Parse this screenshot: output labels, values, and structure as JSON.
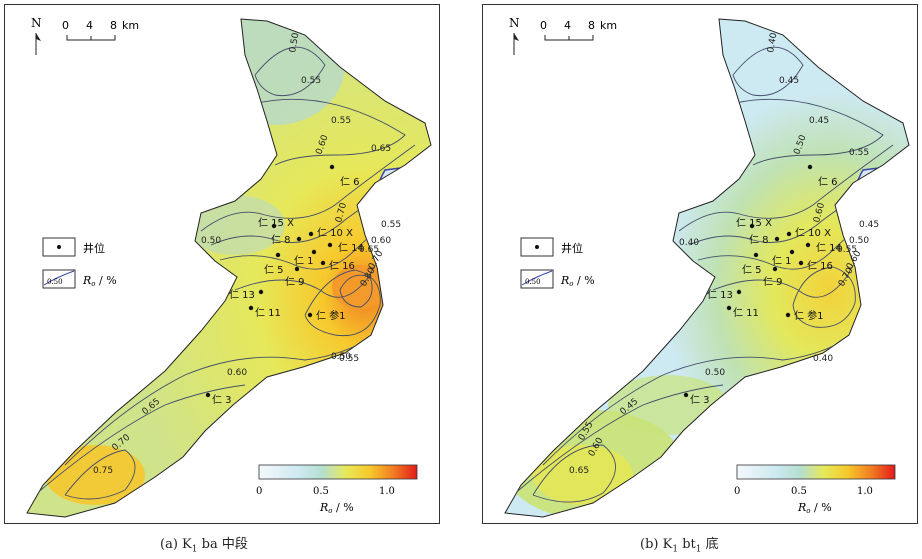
{
  "scale": {
    "zero": "0",
    "four": "4",
    "eight": "8",
    "unit": "km"
  },
  "north": "N",
  "legend": {
    "well": "井位",
    "contour_sample": "0.50",
    "ro_label": "R",
    "ro_sub": "o",
    "ro_unit": " / %"
  },
  "colorbar": {
    "ticks": [
      "0",
      "0.5",
      "1.0"
    ],
    "label_main": "R",
    "label_sub": "o",
    "label_unit": " / %",
    "colors": [
      "#f4f9fc",
      "#cde9f1",
      "#b5dfd0",
      "#e6e85a",
      "#f7c92c",
      "#f07d22",
      "#e41b1b"
    ]
  },
  "panels": [
    {
      "id": "a",
      "caption_prefix": "(a) K",
      "caption_sub": "1",
      "caption_rest": "ba 中段",
      "contour_labels": [
        "0.50",
        "0.55",
        "0.55",
        "0.60",
        "0.65",
        "0.70",
        "0.50",
        "0.55",
        "0.60",
        "0.65",
        "0.70",
        "0.80",
        "0.50",
        "0.55",
        "0.60",
        "0.65",
        "0.70",
        "0.75"
      ],
      "wells": [
        "仁 6",
        "仁 15 X",
        "仁 8",
        "仁 10 X",
        "仁 1",
        "仁 14",
        "仁 5",
        "仁 16",
        "仁 9",
        "仁 13",
        "仁 11",
        "仁 参1",
        "仁 3"
      ]
    },
    {
      "id": "b",
      "caption_prefix": "(b) K",
      "caption_sub": "1",
      "caption_rest": "bt",
      "caption_sub2": "1",
      "caption_tail": " 底",
      "contour_labels": [
        "0.40",
        "0.45",
        "0.45",
        "0.50",
        "0.55",
        "0.60",
        "0.40",
        "0.45",
        "0.50",
        "0.55",
        "0.60",
        "0.70",
        "0.40",
        "0.50",
        "0.45",
        "0.55",
        "0.60",
        "0.65"
      ],
      "wells": [
        "仁 6",
        "仁 15 X",
        "仁 8",
        "仁 10 X",
        "仁 1",
        "仁 14",
        "仁 5",
        "仁 16",
        "仁 9",
        "仁 13",
        "仁 11",
        "仁 参1",
        "仁 3"
      ]
    }
  ]
}
